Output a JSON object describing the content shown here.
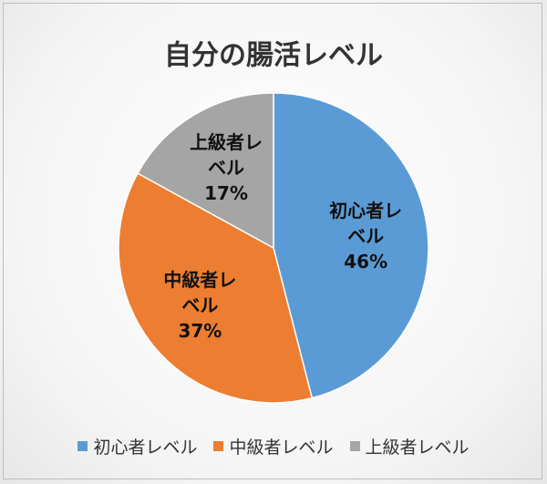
{
  "chart_data": {
    "type": "pie",
    "title": "自分の腸活レベル",
    "categories": [
      "初心者レベル",
      "中級者レベル",
      "上級者レベル"
    ],
    "values": [
      46,
      37,
      17
    ],
    "value_labels": [
      "46%",
      "37%",
      "17%"
    ],
    "colors": [
      "#5b9bd5",
      "#ed7d31",
      "#a5a5a5"
    ],
    "legend": "bottom"
  }
}
